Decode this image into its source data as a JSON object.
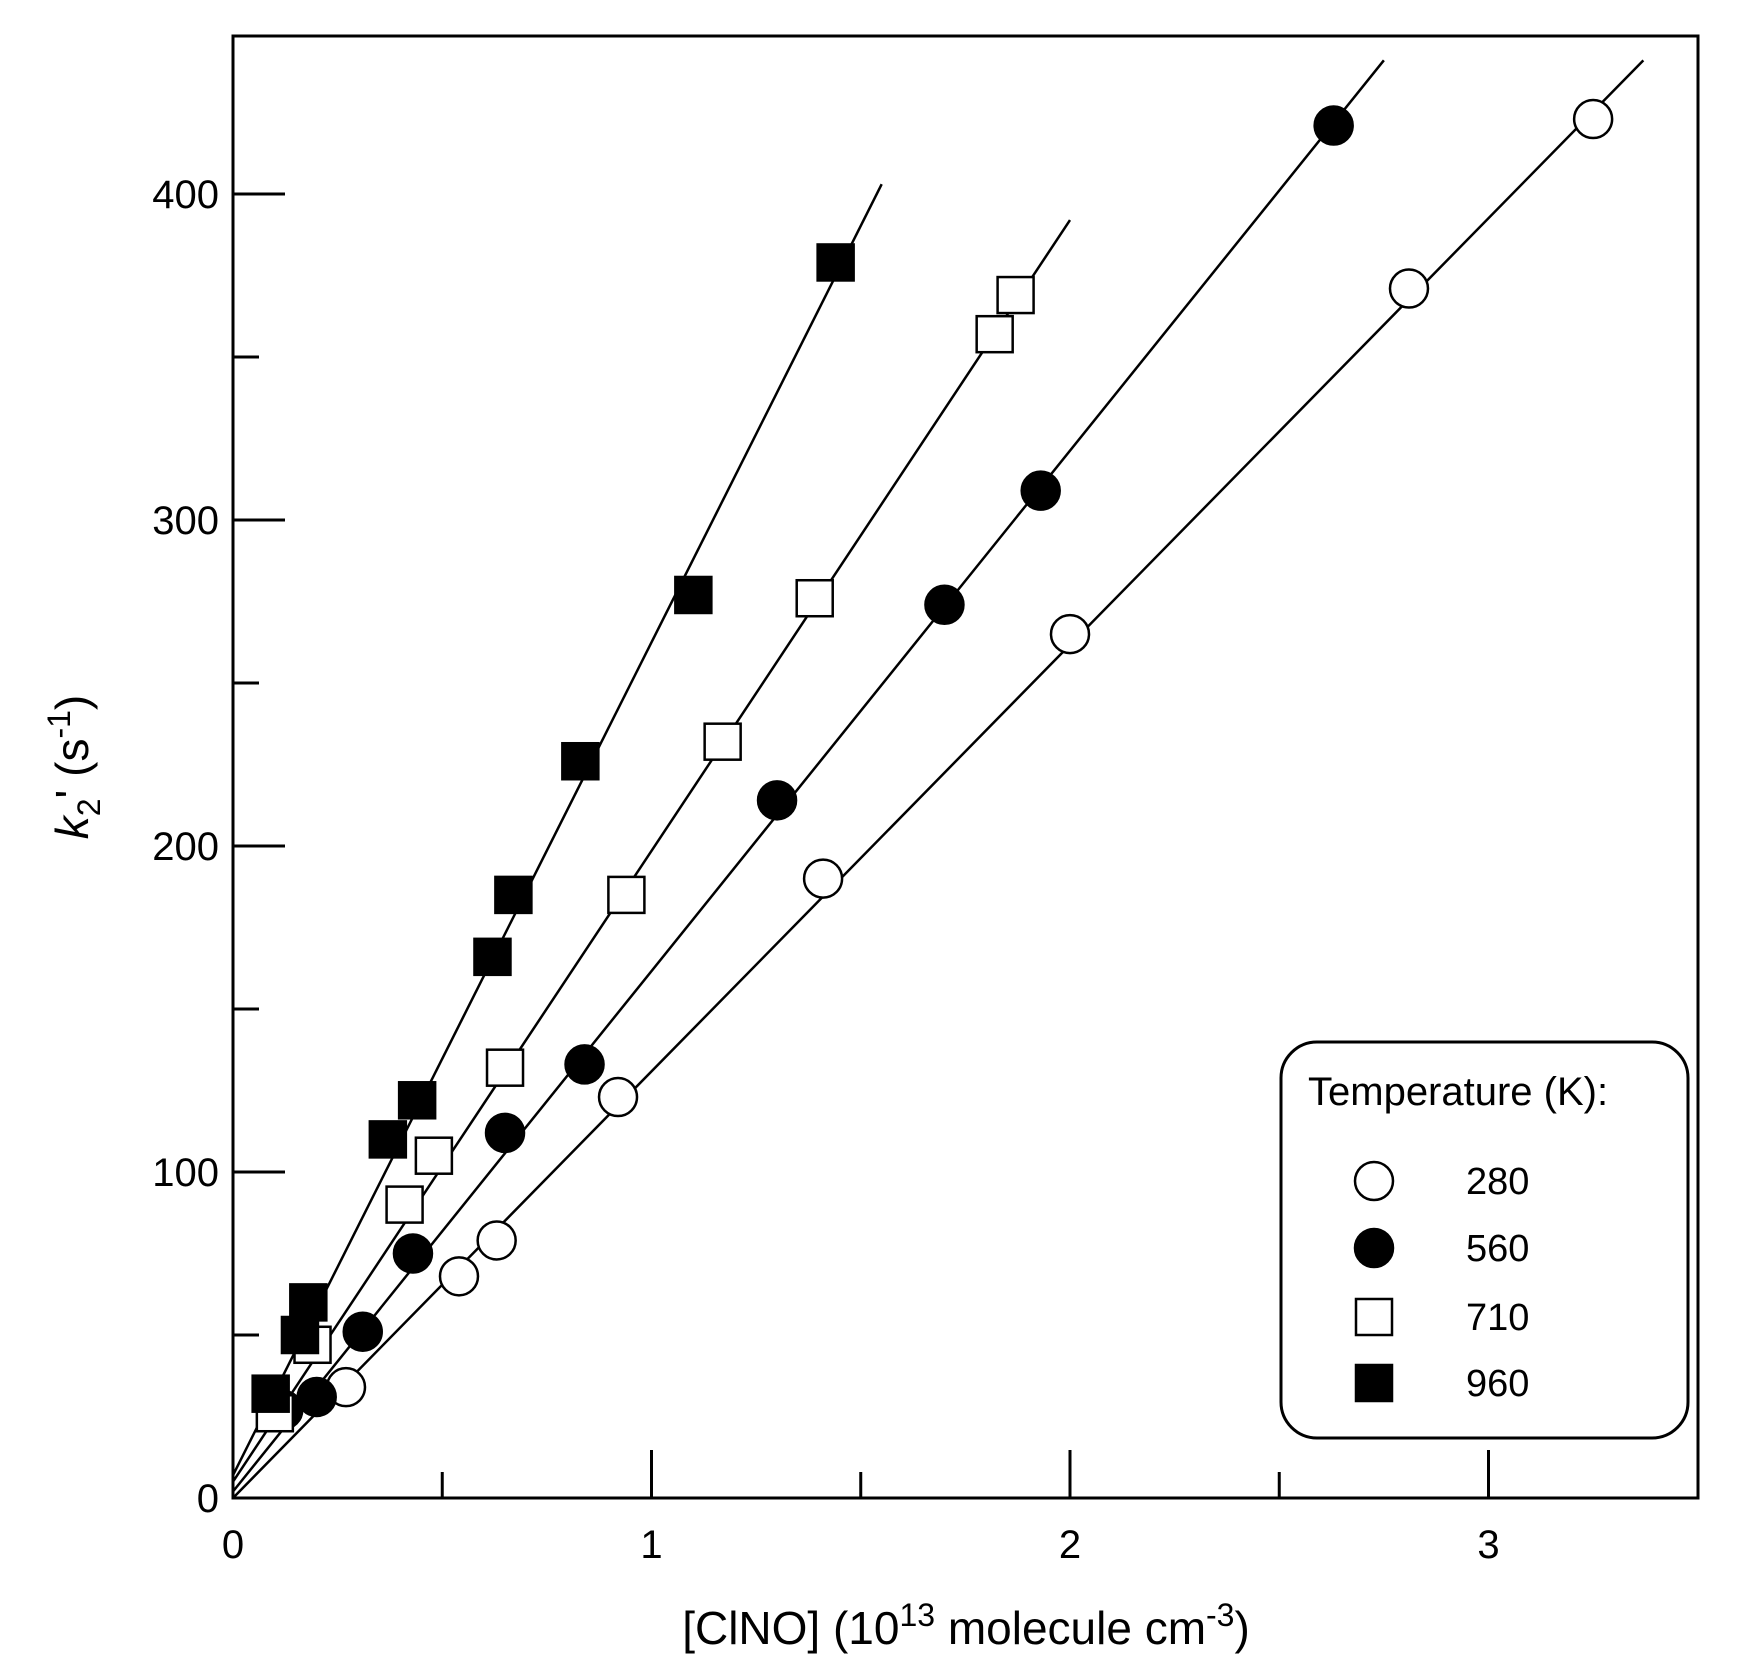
{
  "chart_data": {
    "type": "scatter",
    "title": "",
    "xlabel": {
      "base": "[ClNO] (10",
      "sup1": "13",
      "mid": " molecule cm",
      "sup2": "-3",
      "end": ")"
    },
    "ylabel": {
      "var": "k",
      "sub": "2",
      "prime": "' (s",
      "sup": "-1",
      "end": ")"
    },
    "xlim": [
      0,
      3.5
    ],
    "ylim": [
      0,
      450
    ],
    "x_major_ticks": [
      0,
      1,
      2,
      3
    ],
    "x_tick_labels": [
      "0",
      "1",
      "2",
      "3"
    ],
    "x_minor_ticks": [
      0.5,
      1.5,
      2.5
    ],
    "y_major_ticks": [
      0,
      100,
      200,
      300,
      400
    ],
    "y_tick_labels": [
      "0",
      "100",
      "200",
      "300",
      "400"
    ],
    "y_minor_ticks": [
      50,
      150,
      250,
      350
    ],
    "grid": false,
    "legend": {
      "title": "Temperature (K):",
      "position": "bottom-right"
    },
    "series": [
      {
        "name": "280",
        "marker": "open-circle",
        "x": [
          0.27,
          0.54,
          0.63,
          0.92,
          1.41,
          2.0,
          2.81,
          3.25
        ],
        "y": [
          34,
          68,
          79,
          123,
          190,
          265,
          371,
          423
        ],
        "fit": {
          "x": [
            0,
            3.37
          ],
          "y": [
            0,
            441
          ]
        }
      },
      {
        "name": "560",
        "marker": "filled-circle",
        "x": [
          0.12,
          0.2,
          0.31,
          0.43,
          0.65,
          0.84,
          1.3,
          1.7,
          1.93,
          2.63
        ],
        "y": [
          27,
          31,
          51,
          75,
          112,
          133,
          214,
          274,
          309,
          421
        ],
        "fit": {
          "x": [
            0,
            2.75
          ],
          "y": [
            2,
            441
          ]
        }
      },
      {
        "name": "710",
        "marker": "open-square",
        "x": [
          0.1,
          0.19,
          0.41,
          0.48,
          0.65,
          0.94,
          1.17,
          1.39,
          1.82,
          1.87
        ],
        "y": [
          26,
          47,
          90,
          105,
          132,
          185,
          232,
          276,
          357,
          369
        ],
        "fit": {
          "x": [
            0,
            2.0
          ],
          "y": [
            5,
            392
          ]
        }
      },
      {
        "name": "960",
        "marker": "filled-square",
        "x": [
          0.09,
          0.16,
          0.18,
          0.37,
          0.44,
          0.62,
          0.67,
          0.83,
          1.1,
          1.44
        ],
        "y": [
          32,
          50,
          60,
          110,
          122,
          166,
          185,
          226,
          277,
          379
        ],
        "fit": {
          "x": [
            0,
            1.55
          ],
          "y": [
            7,
            403
          ]
        }
      }
    ]
  }
}
